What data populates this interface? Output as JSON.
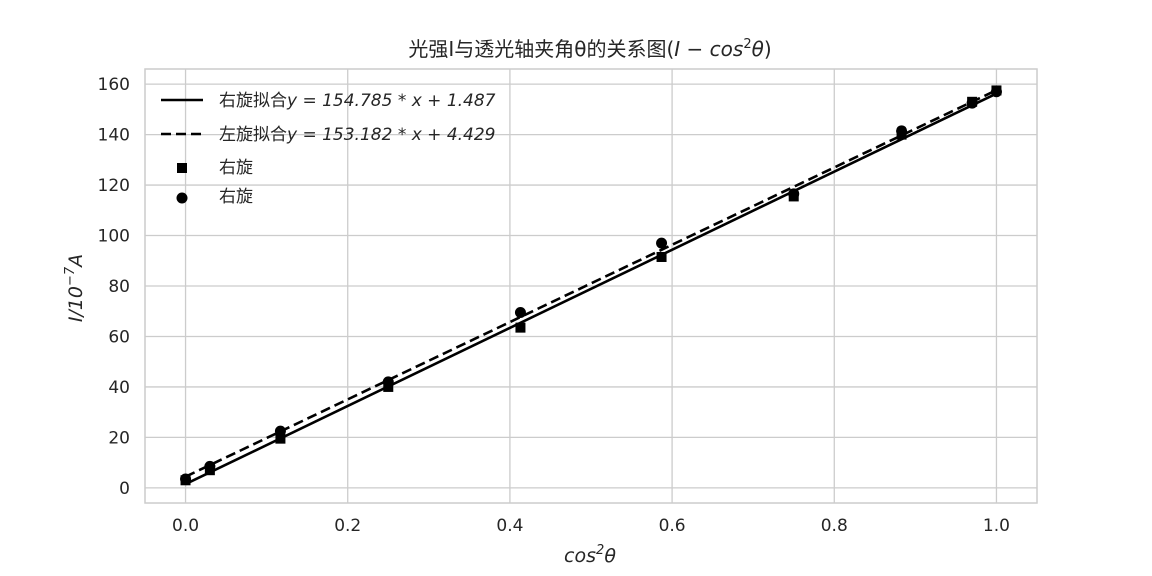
{
  "chart_data": {
    "type": "scatter",
    "title": "光强I与透光轴夹角θ的关系图(",
    "title_math": {
      "pre": "I − cos",
      "sup": "2",
      "post": "θ"
    },
    "title_close": ")",
    "xlabel": {
      "base": "cos",
      "sup": "2",
      "post": "θ"
    },
    "ylabel": {
      "pre": "I/10",
      "sup": "−7",
      "post": "A"
    },
    "xlim": [
      -0.05,
      1.05
    ],
    "ylim": [
      -6,
      166
    ],
    "x_ticks": [
      0.0,
      0.2,
      0.4,
      0.6,
      0.8,
      1.0
    ],
    "x_tick_labels": [
      "0.0",
      "0.2",
      "0.4",
      "0.6",
      "0.8",
      "1.0"
    ],
    "y_ticks": [
      0,
      20,
      40,
      60,
      80,
      100,
      120,
      140,
      160
    ],
    "y_tick_labels": [
      "0",
      "20",
      "40",
      "60",
      "80",
      "100",
      "120",
      "140",
      "160"
    ],
    "grid": true,
    "legend_position": "top-left",
    "fit_lines": [
      {
        "name": "右旋拟合",
        "equation": "y = 154.785 * x + 1.487",
        "slope": 154.785,
        "intercept": 1.487,
        "style": "solid",
        "color": "#000000",
        "x_range": [
          0.0,
          1.0
        ]
      },
      {
        "name": "左旋拟合",
        "equation": "y = 153.182 * x + 4.429",
        "slope": 153.182,
        "intercept": 4.429,
        "style": "dashed",
        "color": "#000000",
        "x_range": [
          0.0,
          1.0
        ]
      }
    ],
    "series": [
      {
        "name": "右旋",
        "marker": "square",
        "color": "#000000",
        "points": [
          [
            0.0,
            3
          ],
          [
            0.03,
            7
          ],
          [
            0.117,
            19.5
          ],
          [
            0.25,
            40
          ],
          [
            0.413,
            63.5
          ],
          [
            0.587,
            91.5
          ],
          [
            0.75,
            115.5
          ],
          [
            0.883,
            140
          ],
          [
            0.97,
            153
          ],
          [
            1.0,
            157.5
          ]
        ]
      },
      {
        "name": "右旋",
        "marker": "circle",
        "color": "#000000",
        "points": [
          [
            0.0,
            3.5
          ],
          [
            0.03,
            8.5
          ],
          [
            0.117,
            22.5
          ],
          [
            0.25,
            42
          ],
          [
            0.413,
            69.5
          ],
          [
            0.587,
            97
          ],
          [
            0.75,
            116.5
          ],
          [
            0.883,
            141.5
          ],
          [
            0.97,
            152.5
          ],
          [
            1.0,
            157
          ]
        ]
      }
    ]
  }
}
